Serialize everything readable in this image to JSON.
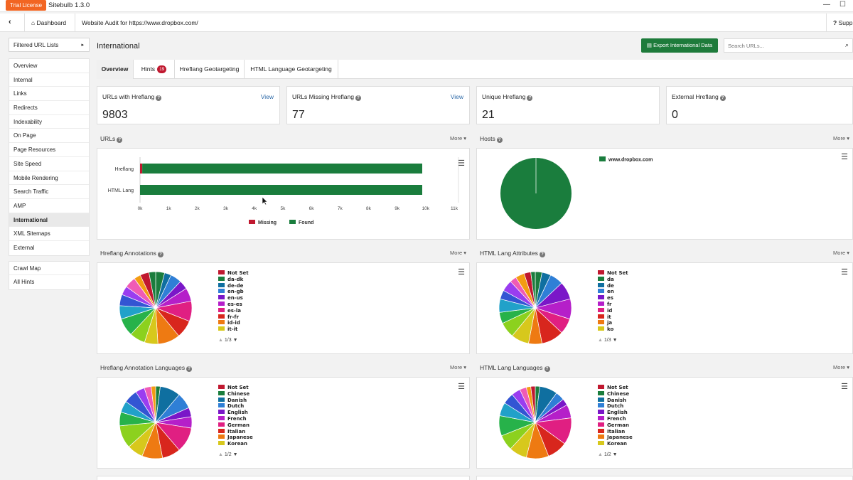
{
  "titlebar": {
    "trial": "Trial License",
    "app": "Sitebulb 1.3.0",
    "minimize_glyph": "—",
    "maximize_glyph": "☐"
  },
  "breadcrumb": {
    "back_glyph": "‹",
    "dashboard": "Dashboard",
    "audit": "Website Audit for https://www.dropbox.com/",
    "support": "Supp"
  },
  "sidebar": {
    "filter_label": "Filtered URL Lists",
    "nav": [
      "Overview",
      "Internal",
      "Links",
      "Redirects",
      "Indexability",
      "On Page",
      "Page Resources",
      "Site Speed",
      "Mobile Rendering",
      "Search Traffic",
      "AMP",
      "International",
      "XML Sitemaps",
      "External"
    ],
    "active_index": 11,
    "extra": [
      "Crawl Map",
      "All Hints"
    ]
  },
  "page": {
    "title": "International",
    "export": "Export International Data",
    "search_placeholder": "Search URLs..."
  },
  "tabs": {
    "overview": "Overview",
    "hints": "Hints",
    "hints_count": "19",
    "hreflang_geo": "Hreflang Geotargeting",
    "html_geo": "HTML Language Geotargeting"
  },
  "cards": [
    {
      "label": "URLs with Hreflang",
      "value": "9803",
      "link": "View"
    },
    {
      "label": "URLs Missing Hreflang",
      "value": "77",
      "link": "View"
    },
    {
      "label": "Unique Hreflang",
      "value": "21"
    },
    {
      "label": "External Hreflang",
      "value": "0"
    }
  ],
  "more_label": "More",
  "panels": {
    "urls": "URLs",
    "hosts": "Hosts",
    "hreflang_annotations": "Hreflang Annotations",
    "html_lang_attributes": "HTML Lang Attributes",
    "hreflang_languages": "Hreflang Annotation Languages",
    "html_lang_languages": "HTML Lang Languages"
  },
  "chart_data": [
    {
      "type": "bar",
      "title": "URLs",
      "orientation": "horizontal",
      "stacked": true,
      "categories": [
        "Hreflang",
        "HTML Lang"
      ],
      "series": [
        {
          "name": "Missing",
          "color": "#c0182f",
          "values": [
            77,
            0
          ]
        },
        {
          "name": "Found",
          "color": "#1a7d3d",
          "values": [
            9803,
            9880
          ]
        }
      ],
      "xlim": [
        0,
        11000
      ],
      "xticks": [
        "0k",
        "1k",
        "2k",
        "3k",
        "4k",
        "5k",
        "6k",
        "7k",
        "8k",
        "9k",
        "10k",
        "11k"
      ],
      "legend": "bottom"
    },
    {
      "type": "pie",
      "title": "Hosts",
      "labels": [
        "www.dropbox.com"
      ],
      "values": [
        100
      ],
      "colors": [
        "#1a7d3d"
      ],
      "legend": "top-right"
    },
    {
      "type": "pie",
      "title": "Hreflang Annotations",
      "legend_visible": [
        "Not Set",
        "da-dk",
        "de-de",
        "en-gb",
        "en-us",
        "es-es",
        "es-la",
        "fr-fr",
        "id-id",
        "it-it"
      ],
      "pager": "1/3",
      "legend": "right"
    },
    {
      "type": "pie",
      "title": "HTML Lang Attributes",
      "legend_visible": [
        "Not Set",
        "da",
        "de",
        "en",
        "es",
        "fr",
        "id",
        "it",
        "ja",
        "ko"
      ],
      "pager": "1/3",
      "legend": "right"
    },
    {
      "type": "pie",
      "title": "Hreflang Annotation Languages",
      "legend_visible": [
        "Not Set",
        "Chinese",
        "Danish",
        "Dutch",
        "English",
        "French",
        "German",
        "Italian",
        "Japanese",
        "Korean"
      ],
      "pager": "1/2",
      "legend": "right"
    },
    {
      "type": "pie",
      "title": "HTML Lang Languages",
      "legend_visible": [
        "Not Set",
        "Chinese",
        "Danish",
        "Dutch",
        "English",
        "French",
        "German",
        "Italian",
        "Japanese",
        "Korean"
      ],
      "pager": "1/2",
      "legend": "right"
    }
  ],
  "palette": [
    "#c0182f",
    "#1a7d3d",
    "#0f6fa0",
    "#2f7fd6",
    "#7a17c8",
    "#b51fc9",
    "#e01f82",
    "#d8261d",
    "#ee7a12",
    "#d7c81c",
    "#8cd11e",
    "#27b24a",
    "#21a1c9",
    "#3355d3",
    "#9a3df0",
    "#f05bb5",
    "#f39c12"
  ]
}
